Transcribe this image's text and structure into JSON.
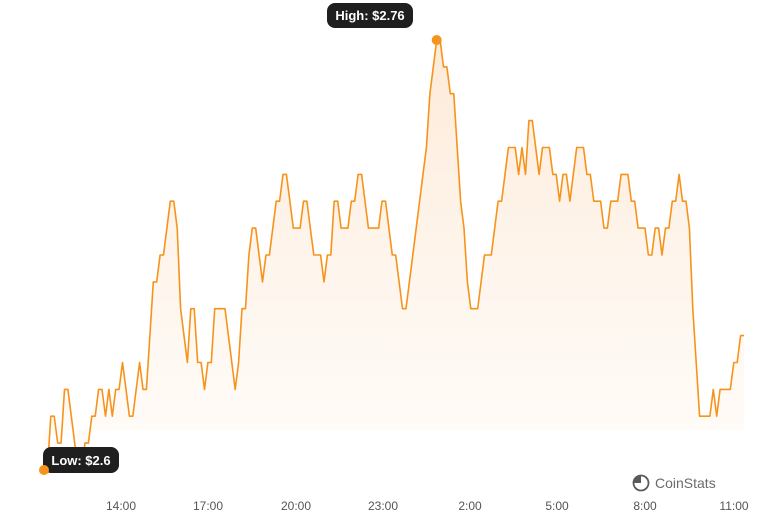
{
  "chart_data": {
    "type": "area",
    "x_ticks": [
      "14:00",
      "17:00",
      "20:00",
      "23:00",
      "2:00",
      "5:00",
      "8:00",
      "11:00"
    ],
    "series": [
      {
        "values": [
          2.6,
          2.6,
          2.62,
          2.62,
          2.61,
          2.61,
          2.63,
          2.63,
          2.62,
          2.61,
          2.6,
          2.6,
          2.61,
          2.61,
          2.62,
          2.62,
          2.63,
          2.63,
          2.62,
          2.63,
          2.62,
          2.63,
          2.63,
          2.64,
          2.63,
          2.62,
          2.62,
          2.63,
          2.64,
          2.63,
          2.63,
          2.65,
          2.67,
          2.67,
          2.68,
          2.68,
          2.69,
          2.7,
          2.7,
          2.69,
          2.66,
          2.65,
          2.64,
          2.66,
          2.66,
          2.64,
          2.64,
          2.63,
          2.64,
          2.64,
          2.66,
          2.66,
          2.66,
          2.66,
          2.65,
          2.64,
          2.63,
          2.64,
          2.66,
          2.66,
          2.68,
          2.69,
          2.69,
          2.68,
          2.67,
          2.68,
          2.68,
          2.69,
          2.7,
          2.7,
          2.71,
          2.71,
          2.7,
          2.69,
          2.69,
          2.69,
          2.7,
          2.7,
          2.69,
          2.68,
          2.68,
          2.68,
          2.67,
          2.68,
          2.68,
          2.7,
          2.7,
          2.69,
          2.69,
          2.69,
          2.7,
          2.7,
          2.71,
          2.71,
          2.7,
          2.69,
          2.69,
          2.69,
          2.69,
          2.7,
          2.7,
          2.69,
          2.68,
          2.68,
          2.67,
          2.66,
          2.66,
          2.67,
          2.68,
          2.69,
          2.7,
          2.71,
          2.72,
          2.74,
          2.75,
          2.76,
          2.76,
          2.75,
          2.75,
          2.74,
          2.74,
          2.72,
          2.7,
          2.69,
          2.67,
          2.66,
          2.66,
          2.66,
          2.67,
          2.68,
          2.68,
          2.68,
          2.69,
          2.7,
          2.7,
          2.71,
          2.72,
          2.72,
          2.72,
          2.71,
          2.72,
          2.71,
          2.73,
          2.73,
          2.72,
          2.71,
          2.72,
          2.72,
          2.72,
          2.71,
          2.71,
          2.7,
          2.71,
          2.71,
          2.7,
          2.71,
          2.72,
          2.72,
          2.72,
          2.71,
          2.71,
          2.7,
          2.7,
          2.7,
          2.69,
          2.69,
          2.7,
          2.7,
          2.7,
          2.71,
          2.71,
          2.71,
          2.7,
          2.7,
          2.69,
          2.69,
          2.69,
          2.68,
          2.68,
          2.69,
          2.69,
          2.68,
          2.69,
          2.69,
          2.7,
          2.7,
          2.71,
          2.7,
          2.7,
          2.69,
          2.66,
          2.64,
          2.62,
          2.62,
          2.62,
          2.62,
          2.63,
          2.62,
          2.63,
          2.63,
          2.63,
          2.63,
          2.64,
          2.64,
          2.65,
          2.65
        ]
      }
    ],
    "ylim": [
      2.6,
      2.76
    ],
    "high_label": "High: $2.76",
    "low_label": "Low: $2.6",
    "colors": {
      "line": "#f7931a",
      "area_top": "#fde9d6",
      "area_bottom": "#fffaf5",
      "tooltip_bg": "#1f1f1f"
    },
    "grid": false,
    "legend": "none"
  },
  "watermark": {
    "text": "CoinStats",
    "icon": "coinstats-logo-icon"
  }
}
